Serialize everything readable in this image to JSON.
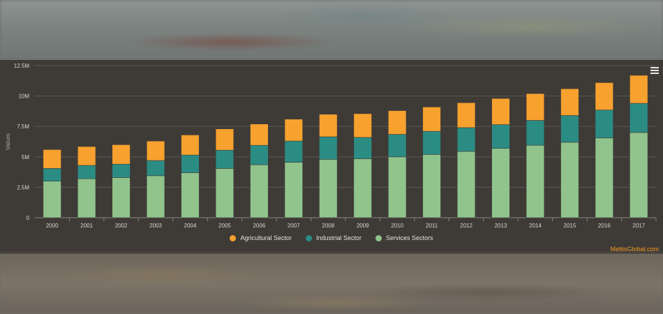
{
  "chart_data": {
    "type": "bar",
    "stacked": true,
    "categories": [
      "2000",
      "2001",
      "2002",
      "2003",
      "2004",
      "2005",
      "2006",
      "2007",
      "2008",
      "2009",
      "2010",
      "2011",
      "2012",
      "2013",
      "2014",
      "2015",
      "2016",
      "2017"
    ],
    "series": [
      {
        "name": "Services Sectors",
        "color": "#90c48c",
        "values": [
          3.0,
          3.2,
          3.3,
          3.45,
          3.7,
          4.05,
          4.35,
          4.55,
          4.8,
          4.85,
          5.0,
          5.2,
          5.45,
          5.7,
          5.95,
          6.2,
          6.55,
          7.0
        ]
      },
      {
        "name": "Industrial Sector",
        "color": "#2b8c84",
        "values": [
          1.05,
          1.1,
          1.1,
          1.25,
          1.45,
          1.5,
          1.6,
          1.75,
          1.85,
          1.75,
          1.85,
          1.9,
          1.95,
          1.95,
          2.05,
          2.2,
          2.3,
          2.4
        ]
      },
      {
        "name": "Agricultural Sector",
        "color": "#f7a12e",
        "values": [
          1.55,
          1.55,
          1.6,
          1.6,
          1.65,
          1.75,
          1.75,
          1.8,
          1.85,
          1.95,
          1.95,
          2.0,
          2.05,
          2.15,
          2.2,
          2.2,
          2.25,
          2.3
        ]
      }
    ],
    "ylabel": "Values",
    "y_unit": "millions",
    "ylim": [
      0,
      12.5
    ],
    "yticks": [
      "0",
      "2.5M",
      "5M",
      "7.5M",
      "10M",
      "12.5M"
    ],
    "ytick_values": [
      0,
      2.5,
      5,
      7.5,
      10,
      12.5
    ],
    "grid": true,
    "legend_placement": "bottom-center"
  },
  "legend": {
    "items": [
      {
        "label": "Agricultural Sector",
        "color": "#f7a12e"
      },
      {
        "label": "Industrial Sector",
        "color": "#2b8c84"
      },
      {
        "label": "Services Sectors",
        "color": "#90c48c"
      }
    ]
  },
  "credit": "MettisGlobal.com",
  "menu_icon": "hamburger-menu-icon"
}
